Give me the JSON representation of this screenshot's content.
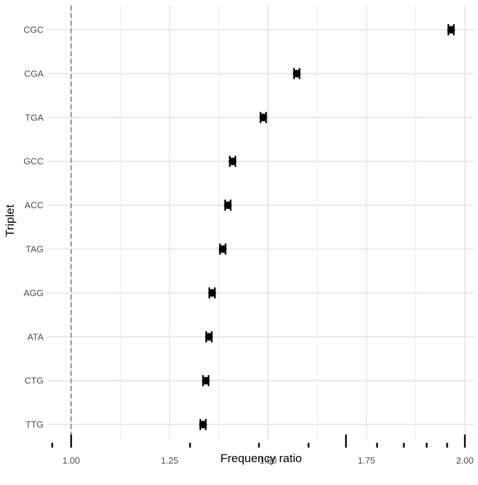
{
  "chart_data": {
    "type": "scatter",
    "title": "",
    "xlabel": "Frequency ratio",
    "ylabel": "Triplet",
    "xlim": [
      0.95,
      2.0
    ],
    "x_ticks": [
      "1.00",
      "1.25",
      "1.50",
      "1.75",
      "2.00"
    ],
    "x_tick_values": [
      1.0,
      1.25,
      1.5,
      1.75,
      2.0
    ],
    "reference_line": {
      "x": 1.0,
      "style": "dashed",
      "color": "#999999"
    },
    "categories": [
      "CGC",
      "CGA",
      "TGA",
      "GCC",
      "ACC",
      "TAG",
      "AGG",
      "ATA",
      "CTG",
      "TTG"
    ],
    "values": [
      1.965,
      1.573,
      1.488,
      1.41,
      1.398,
      1.385,
      1.358,
      1.35,
      1.342,
      1.335
    ],
    "error_half_width": [
      0.007,
      0.007,
      0.007,
      0.007,
      0.007,
      0.007,
      0.007,
      0.007,
      0.007,
      0.007
    ],
    "rug_x": [
      0.952,
      1.0,
      1.302,
      1.477,
      1.603,
      1.698,
      1.777,
      1.845,
      1.903,
      1.955,
      2.0
    ],
    "rug_tall": [
      false,
      true,
      false,
      false,
      false,
      true,
      false,
      false,
      false,
      false,
      true
    ],
    "grid": true,
    "legend": "none",
    "colors": {
      "point": "#000000",
      "grid": "#e5e5e5",
      "reference": "#999999"
    }
  }
}
